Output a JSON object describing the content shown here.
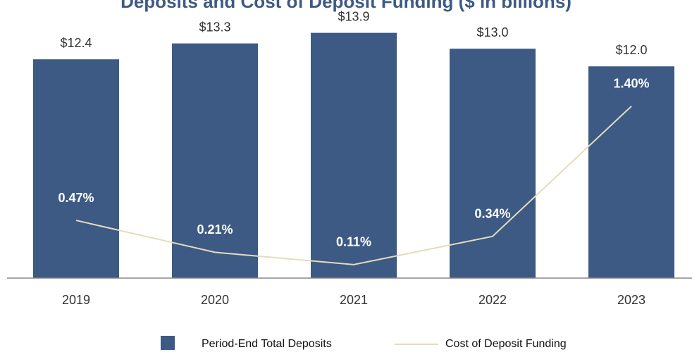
{
  "chart_data": {
    "type": "bar",
    "title": "Deposits and Cost of Deposit Funding ($ in billions)",
    "categories": [
      "2019",
      "2020",
      "2021",
      "2022",
      "2023"
    ],
    "series": [
      {
        "name": "Period-End Total Deposits",
        "type": "bar",
        "color": "#3c5a84",
        "values": [
          12.4,
          13.3,
          13.9,
          13.0,
          12.0
        ],
        "value_labels": [
          "$12.4",
          "$13.3",
          "$13.9",
          "$13.0",
          "$12.0"
        ]
      },
      {
        "name": "Cost of Deposit Funding",
        "type": "line",
        "axis": "y2",
        "color": "#e6dcbc",
        "values": [
          0.47,
          0.21,
          0.11,
          0.34,
          1.4
        ],
        "value_labels": [
          "0.47%",
          "0.21%",
          "0.11%",
          "0.34%",
          "1.40%"
        ]
      }
    ],
    "ylim": [
      0,
      16
    ],
    "y2lim": [
      0,
      2.3
    ]
  }
}
